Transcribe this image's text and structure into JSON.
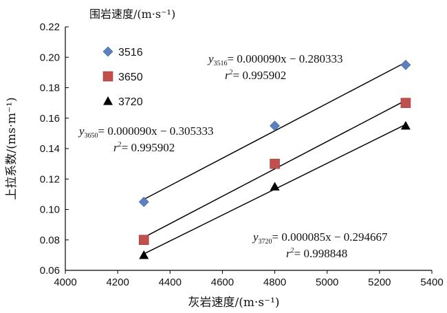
{
  "chart_data": {
    "type": "scatter",
    "xlabel": "灰岩速度/(m·s⁻¹)",
    "ylabel": "上拉系数/(ms·m⁻¹)",
    "xlim": [
      4000,
      5400
    ],
    "ylim": [
      0.06,
      0.22
    ],
    "xticks": [
      4000,
      4200,
      4400,
      4600,
      4800,
      5000,
      5200,
      5400
    ],
    "yticks": [
      0.06,
      0.08,
      0.1,
      0.12,
      0.14,
      0.16,
      0.18,
      0.2,
      0.22
    ],
    "xtick_labels": [
      "4000",
      "4200",
      "4400",
      "4600",
      "4800",
      "5000",
      "5200",
      "5400"
    ],
    "ytick_labels": [
      "0.06",
      "0.08",
      "0.10",
      "0.12",
      "0.14",
      "0.16",
      "0.18",
      "0.20",
      "0.22"
    ],
    "legend_title": "围岩速度/(m·s⁻¹)",
    "legend_position": "top-left",
    "grid": false,
    "series": [
      {
        "name": "3516",
        "marker": "diamond",
        "color": "#5b7fbf",
        "x": [
          4300,
          4800,
          5300
        ],
        "y": [
          0.105,
          0.155,
          0.195
        ],
        "fit": {
          "slope": 9e-05,
          "intercept": -0.280333,
          "x_range": [
            4300,
            5300
          ]
        },
        "equation": {
          "var": "y",
          "sub": "3516",
          "rhs": "= 0.000090x − 0.280333",
          "r2_label": "r",
          "r2_value": "= 0.995902"
        }
      },
      {
        "name": "3650",
        "marker": "square",
        "color": "#c0504d",
        "x": [
          4300,
          4800,
          5300
        ],
        "y": [
          0.08,
          0.13,
          0.17
        ],
        "fit": {
          "slope": 9e-05,
          "intercept": -0.305333,
          "x_range": [
            4300,
            5300
          ]
        },
        "equation": {
          "var": "y",
          "sub": "3650",
          "rhs": "= 0.000090x − 0.305333",
          "r2_label": "r",
          "r2_value": "= 0.995902"
        }
      },
      {
        "name": "3720",
        "marker": "triangle",
        "color": "#000000",
        "x": [
          4300,
          4800,
          5300
        ],
        "y": [
          0.07,
          0.115,
          0.155
        ],
        "fit": {
          "slope": 8.5e-05,
          "intercept": -0.294667,
          "x_range": [
            4300,
            5300
          ]
        },
        "equation": {
          "var": "y",
          "sub": "3720",
          "rhs": "= 0.000085x − 0.294667",
          "r2_label": "r",
          "r2_value": "= 0.998848"
        }
      }
    ]
  }
}
